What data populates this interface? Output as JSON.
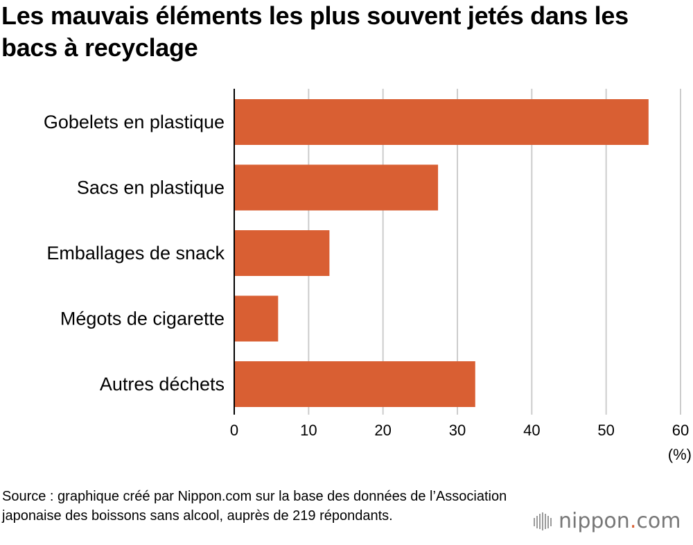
{
  "title": "Les mauvais éléments les plus souvent jetés dans les bacs à recyclage",
  "source": "Source : graphique créé par Nippon.com sur la base des données de l’Association japonaise des boissons sans alcool, auprès de 219 répondants.",
  "logo": {
    "name": "nippon",
    "dot": ".",
    "tld": "com",
    "accent": "#d95f33",
    "icon": "nippon-mark-icon"
  },
  "chart_data": {
    "type": "bar",
    "orientation": "horizontal",
    "categories": [
      "Gobelets en plastique",
      "Sacs en plastique",
      "Emballages de snack",
      "Mégots de cigarette",
      "Autres déchets"
    ],
    "values": [
      55.7,
      27.4,
      12.8,
      5.9,
      32.4
    ],
    "xlim": [
      0,
      60
    ],
    "xticks": [
      0,
      10,
      20,
      30,
      40,
      50,
      60
    ],
    "unit": "(%)",
    "grid": true,
    "bar_color": "#d95f33"
  }
}
